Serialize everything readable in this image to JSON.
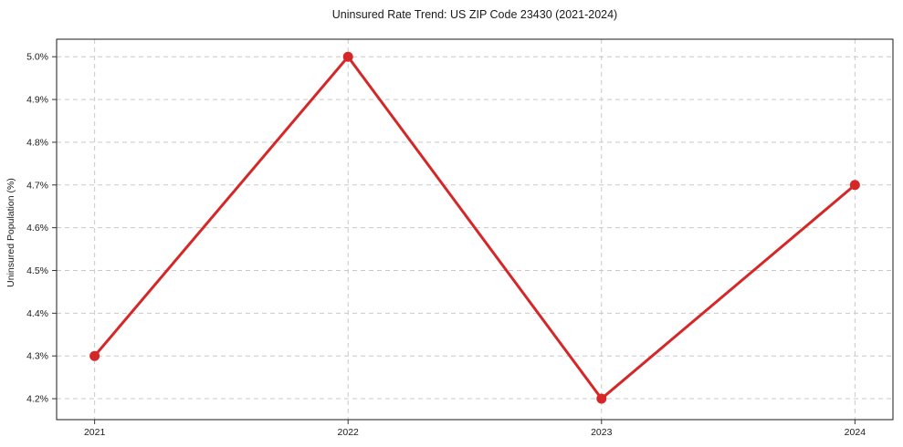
{
  "chart_data": {
    "type": "line",
    "title": "Uninsured Rate Trend: US ZIP Code 23430 (2021-2024)",
    "xlabel": "",
    "ylabel": "Uninsured Population (%)",
    "x": [
      2021,
      2022,
      2023,
      2024
    ],
    "values": [
      4.3,
      5.0,
      4.2,
      4.7
    ],
    "x_tick_labels": [
      "2021",
      "2022",
      "2023",
      "2024"
    ],
    "y_ticks": [
      4.2,
      4.3,
      4.4,
      4.5,
      4.6,
      4.7,
      4.8,
      4.9,
      5.0
    ],
    "y_tick_labels": [
      "4.2%",
      "4.3%",
      "4.4%",
      "4.5%",
      "4.6%",
      "4.7%",
      "4.8%",
      "4.9%",
      "5.0%"
    ],
    "xlim": [
      2020.85,
      2024.15
    ],
    "ylim": [
      4.151,
      5.041
    ],
    "grid": true,
    "grid_style": "dashed",
    "legend": "none",
    "colors": {
      "line": "#d62728",
      "marker": "#d62728",
      "grid": "#c9c9c9",
      "spine": "#1a1a1a",
      "tick": "#333333",
      "text": "#1a1a1a",
      "background": "#ffffff"
    }
  }
}
